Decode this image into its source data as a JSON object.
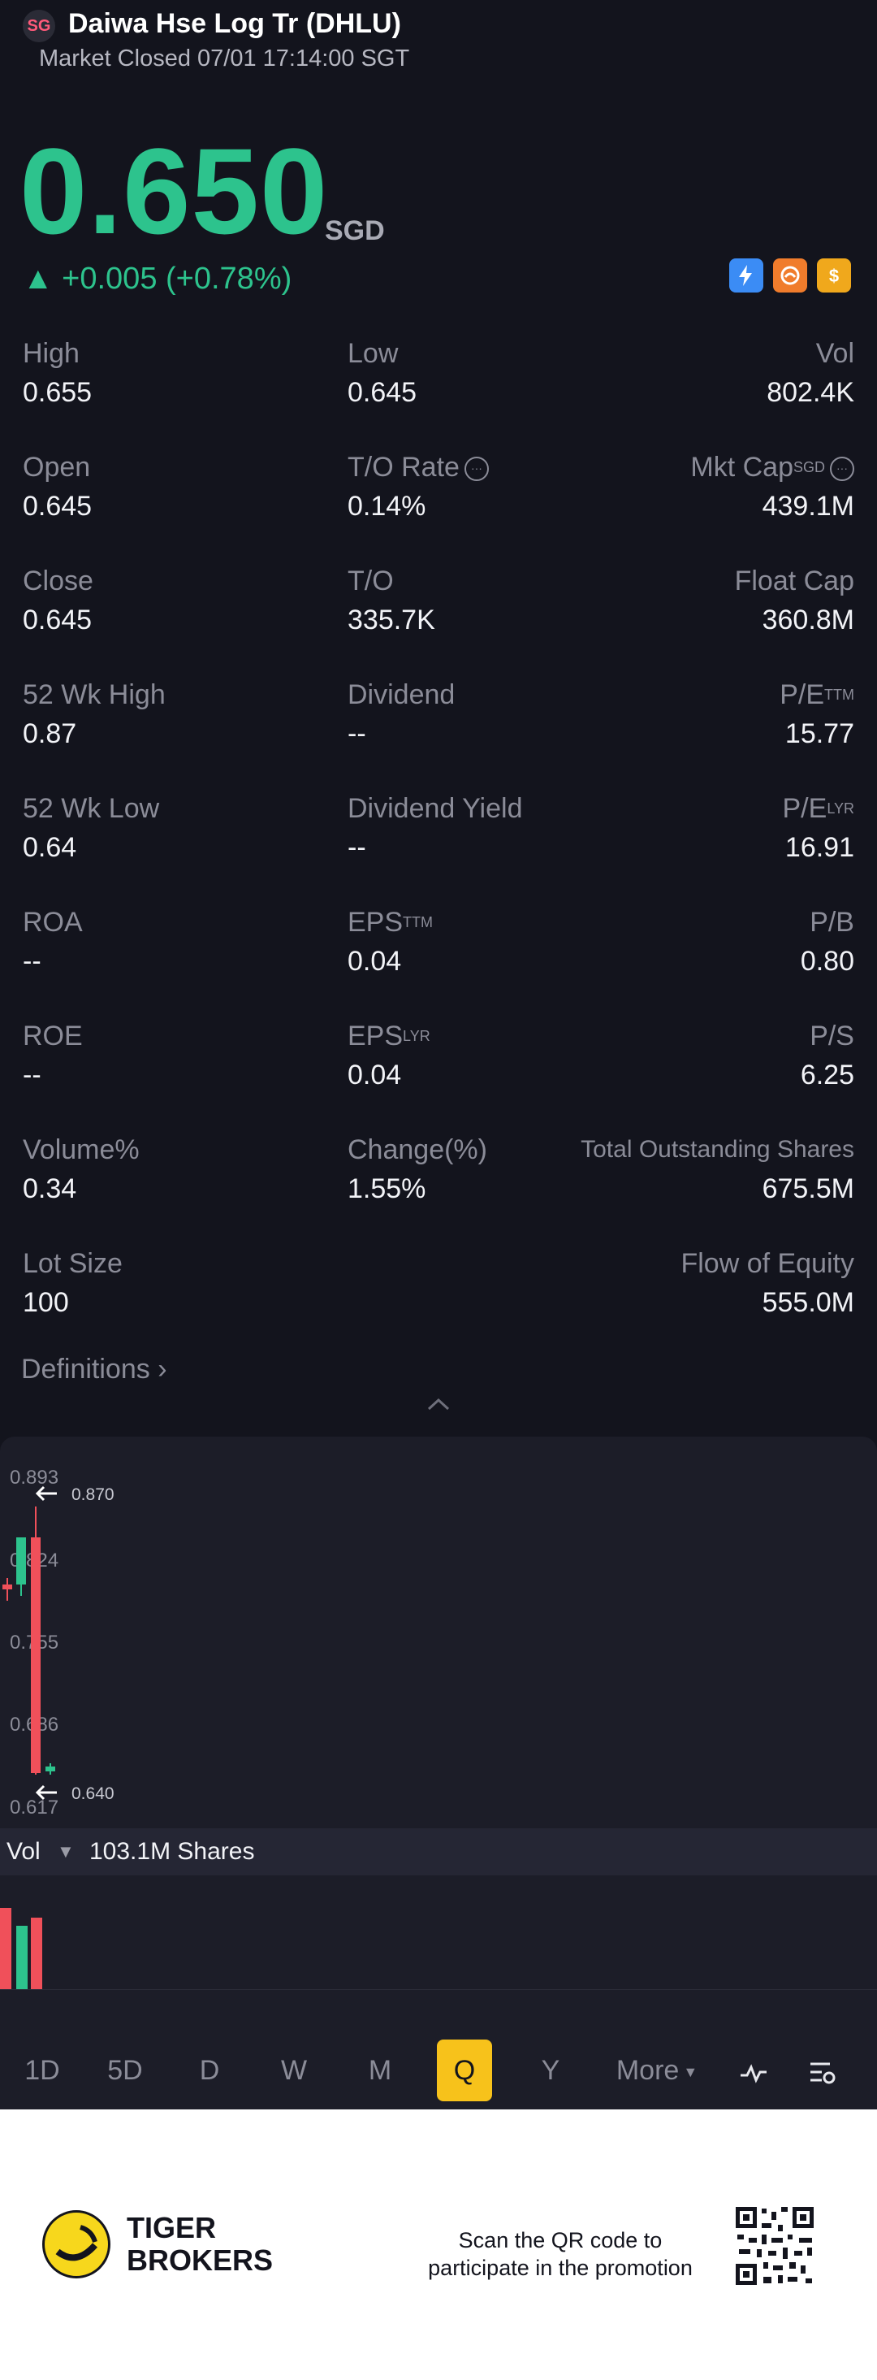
{
  "header": {
    "flag": "SG",
    "title": "Daiwa Hse Log Tr (DHLU)",
    "status": "Market Closed 07/01 17:14:00 SGT"
  },
  "quote": {
    "price": "0.650",
    "currency": "SGD",
    "change": "▲ +0.005 (+0.78%)",
    "badges": [
      "lightning-1-icon",
      "fire-icon",
      "dollar-icon"
    ]
  },
  "stats": [
    [
      {
        "label": "High",
        "value": "0.655"
      },
      {
        "label": "Low",
        "value": "0.645"
      },
      {
        "label": "Vol",
        "value": "802.4K"
      }
    ],
    [
      {
        "label": "Open",
        "value": "0.645"
      },
      {
        "label": "T/O Rate",
        "value": "0.14%"
      },
      {
        "label": "Mkt Cap",
        "sup": "SGD",
        "value": "439.1M"
      }
    ],
    [
      {
        "label": "Close",
        "value": "0.645"
      },
      {
        "label": "T/O",
        "value": "335.7K"
      },
      {
        "label": "Float Cap",
        "value": "360.8M"
      }
    ],
    [
      {
        "label": "52 Wk High",
        "value": "0.87"
      },
      {
        "label": "Dividend",
        "value": "--"
      },
      {
        "label": "P/E",
        "sup": "TTM",
        "value": "15.77"
      }
    ],
    [
      {
        "label": "52 Wk Low",
        "value": "0.64"
      },
      {
        "label": "Dividend Yield",
        "value": "--"
      },
      {
        "label": "P/E",
        "sup": "LYR",
        "value": "16.91"
      }
    ],
    [
      {
        "label": "ROA",
        "value": "--"
      },
      {
        "label": "EPS",
        "sup": "TTM",
        "value": "0.04"
      },
      {
        "label": "P/B",
        "value": "0.80"
      }
    ],
    [
      {
        "label": "ROE",
        "value": "--"
      },
      {
        "label": "EPS",
        "sup": "LYR",
        "value": "0.04"
      },
      {
        "label": "P/S",
        "value": "6.25"
      }
    ],
    [
      {
        "label": "Volume%",
        "value": "0.34"
      },
      {
        "label": "Change(%)",
        "value": "1.55%"
      },
      {
        "label": "Total Outstanding Shares",
        "value": "675.5M"
      }
    ],
    [
      {
        "label": "Lot Size",
        "value": "100"
      },
      {
        "label": "",
        "value": ""
      },
      {
        "label": "Flow of Equity",
        "value": "555.0M"
      }
    ]
  ],
  "definitions": "Definitions",
  "chart": {
    "y_labels": [
      "0.893",
      "0.824",
      "0.755",
      "0.686",
      "0.617"
    ],
    "high_marker": "0.870",
    "low_marker": "0.640",
    "volume_label": "Vol",
    "volume_value": "103.1M Shares"
  },
  "periods": [
    "1D",
    "5D",
    "D",
    "W",
    "M",
    "Q",
    "Y",
    "More"
  ],
  "selected_period": "Q",
  "footer": {
    "brand_line1": "TIGER",
    "brand_line2": "BROKERS",
    "scan_line1": "Scan the QR code to",
    "scan_line2": "participate in the promotion"
  },
  "colors": {
    "up": "#2dc38d",
    "down": "#f0505a",
    "accent": "#f7c21b",
    "background": "#13141d"
  }
}
